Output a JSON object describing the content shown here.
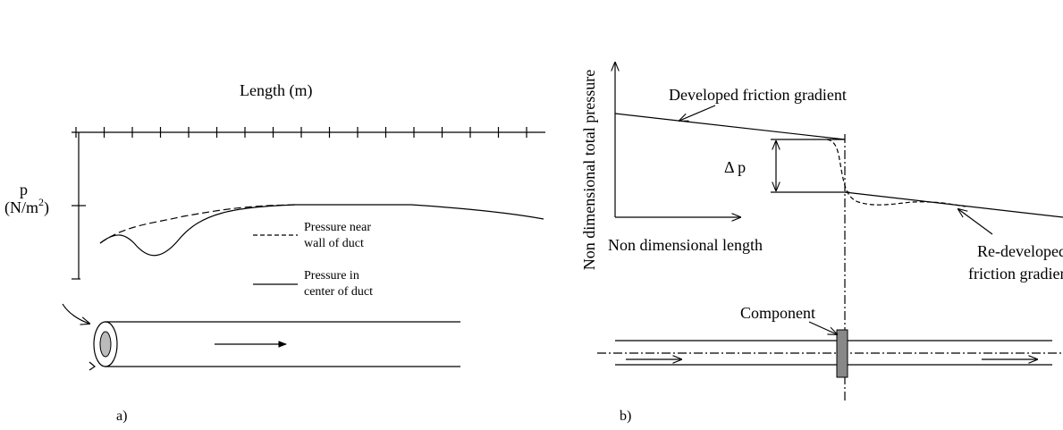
{
  "panel_a": {
    "label": "a)",
    "x_axis_title": "Length   (m)",
    "y_axis_symbol": "p",
    "y_axis_unit_base": "(N/m",
    "y_axis_unit_exponent": "2",
    "y_axis_unit_close": ")",
    "legend": [
      {
        "lines": [
          "Pressure near",
          "wall of duct"
        ]
      },
      {
        "lines": [
          "Pressure in",
          "center of duct"
        ]
      }
    ]
  },
  "panel_b": {
    "label": "b)",
    "y_axis_title": "Non dimensional total pressure",
    "x_axis_title": "Non dimensional length",
    "upper_line_label": "Developed friction gradient",
    "delta_label": "Δ p",
    "lower_line_label": [
      "Re-developed",
      "friction gradient"
    ],
    "component_label": "Component"
  }
}
